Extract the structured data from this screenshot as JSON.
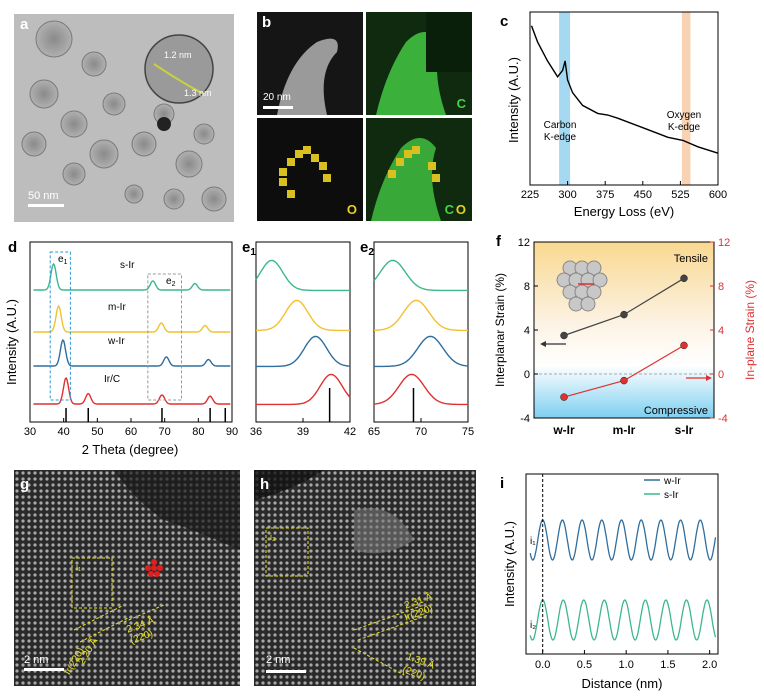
{
  "panels": {
    "a": {
      "letter": "a",
      "scale_bar": "50 nm",
      "inset_label_1": "1.2 nm",
      "inset_label_2": "1.3 nm"
    },
    "b": {
      "letter": "b",
      "scale_bar": "20 nm",
      "map_c": "C",
      "map_o": "O",
      "map_co_c": "C",
      "map_co_o": "O"
    },
    "c": {
      "letter": "c",
      "ylabel": "Intensity (A.U.)",
      "xlabel": "Energy Loss (eV)",
      "ann_carbon": "Carbon\nK-edge",
      "ann_oxygen": "Oxygen\nK-edge"
    },
    "d": {
      "letter": "d",
      "ylabel": "Intensity (A.U.)",
      "xlabel": "2 Theta (degree)",
      "region1": "e1",
      "region2": "e2"
    },
    "e1": {
      "letter": "e",
      "sub": "1"
    },
    "e2": {
      "letter": "e",
      "sub": "2"
    },
    "f": {
      "letter": "f",
      "ylabel_left": "Interplanar Strain (%)",
      "ylabel_right": "In-plane Strain (%)",
      "tensile": "Tensile",
      "compressive": "Compressive"
    },
    "g": {
      "letter": "g",
      "scale_bar": "2 nm",
      "box": "i₁",
      "ann1": "2.34 Å",
      "ann1b": "(220)",
      "ann2": "2.20 Å",
      "ann2b": "Ir(220)"
    },
    "h": {
      "letter": "h",
      "scale_bar": "2 nm",
      "box": "i₂",
      "ann1": "2.31 Å",
      "ann1b": "Ir(220)",
      "ann2": "1.39 Å",
      "ann2b": "(220)"
    },
    "i": {
      "letter": "i",
      "ylabel": "Intensity (A.U.)",
      "xlabel": "Distance (nm)",
      "row1": "i₁",
      "row2": "i₂"
    }
  },
  "colors": {
    "green": "#3cb88b",
    "yellow": "#f2c12e",
    "blue": "#2e6e9e",
    "red": "#e03030",
    "cyan_band": "#8fd0ee",
    "orange_band": "#f6c7a0"
  },
  "chart_data": [
    {
      "type": "line",
      "id": "c",
      "xlabel": "Energy Loss (eV)",
      "ylabel": "Intensity (A.U.)",
      "xlim": [
        225,
        600
      ],
      "xticks": [
        225,
        300,
        375,
        450,
        525,
        600
      ],
      "x": [
        228,
        240,
        260,
        280,
        290,
        295,
        300,
        310,
        330,
        360,
        380,
        400,
        450,
        500,
        530,
        560,
        600
      ],
      "values": [
        1.0,
        0.9,
        0.78,
        0.68,
        0.72,
        0.78,
        0.66,
        0.58,
        0.5,
        0.45,
        0.44,
        0.42,
        0.36,
        0.3,
        0.28,
        0.24,
        0.2
      ],
      "annotations": [
        "Carbon K-edge",
        "Oxygen K-edge"
      ]
    },
    {
      "type": "line",
      "id": "d",
      "xlabel": "2 Theta (degree)",
      "ylabel": "Intensity (A.U.)",
      "xlim": [
        30,
        90
      ],
      "xticks": [
        30,
        40,
        50,
        60,
        70,
        80,
        90
      ],
      "series": [
        {
          "name": "s-Ir",
          "color": "#3cb88b",
          "peaks": [
            [
              37.0,
              1.0
            ],
            [
              66.5,
              0.35
            ],
            [
              79.0,
              0.25
            ]
          ]
        },
        {
          "name": "m-Ir",
          "color": "#f2c12e",
          "peaks": [
            [
              38.5,
              1.0
            ],
            [
              69.0,
              0.35
            ],
            [
              82.0,
              0.25
            ]
          ]
        },
        {
          "name": "w-Ir",
          "color": "#2e6e9e",
          "peaks": [
            [
              39.8,
              1.0
            ],
            [
              70.5,
              0.35
            ],
            [
              83.0,
              0.25
            ]
          ]
        },
        {
          "name": "Ir/C",
          "color": "#e03030",
          "peaks": [
            [
              40.7,
              1.0
            ],
            [
              47.3,
              0.4
            ],
            [
              69.2,
              0.35
            ],
            [
              83.5,
              0.3
            ]
          ]
        }
      ],
      "reference_lines": [
        40.7,
        47.3,
        69.2,
        83.5,
        88.0
      ]
    },
    {
      "type": "line",
      "id": "e1",
      "xlim": [
        36,
        42
      ],
      "xticks": [
        36,
        39,
        42
      ],
      "series": [
        {
          "name": "s-Ir",
          "color": "#3cb88b",
          "peak": 37.0
        },
        {
          "name": "m-Ir",
          "color": "#f2c12e",
          "peak": 38.6
        },
        {
          "name": "w-Ir",
          "color": "#2e6e9e",
          "peak": 39.8
        },
        {
          "name": "Ir/C",
          "color": "#e03030",
          "peak": 40.8
        }
      ]
    },
    {
      "type": "line",
      "id": "e2",
      "xlim": [
        65,
        75
      ],
      "xticks": [
        65,
        70,
        75
      ],
      "series": [
        {
          "name": "s-Ir",
          "color": "#3cb88b",
          "peak": 67.0
        },
        {
          "name": "m-Ir",
          "color": "#f2c12e",
          "peak": 69.5
        },
        {
          "name": "w-Ir",
          "color": "#2e6e9e",
          "peak": 71.0
        },
        {
          "name": "Ir/C",
          "color": "#e03030",
          "peak": 69.0
        }
      ]
    },
    {
      "type": "line",
      "id": "f",
      "categories": [
        "w-Ir",
        "m-Ir",
        "s-Ir"
      ],
      "ylabel_left": "Interplanar Strain (%)",
      "ylabel_right": "In-plane Strain (%)",
      "ylim": [
        -4,
        12
      ],
      "yticks": [
        -4,
        0,
        4,
        8,
        12
      ],
      "series": [
        {
          "name": "Interplanar",
          "color": "#444444",
          "values": [
            3.5,
            5.4,
            8.7
          ]
        },
        {
          "name": "In-plane",
          "color": "#e03030",
          "values": [
            -2.1,
            -0.6,
            2.6
          ]
        }
      ]
    },
    {
      "type": "line",
      "id": "i",
      "xlabel": "Distance (nm)",
      "ylabel": "Intensity (A.U.)",
      "xlim": [
        -0.2,
        2.1
      ],
      "xticks": [
        0.0,
        0.5,
        1.0,
        1.5,
        2.0
      ],
      "series": [
        {
          "name": "w-Ir",
          "color": "#2e6e9e",
          "period": 0.236
        },
        {
          "name": "s-Ir",
          "color": "#3cb88b",
          "period": 0.246
        }
      ]
    }
  ]
}
